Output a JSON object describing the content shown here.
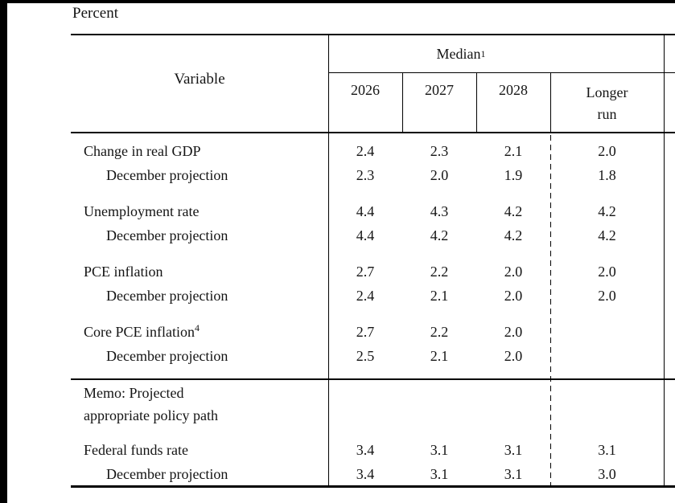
{
  "page": {
    "unit_label": "Percent"
  },
  "table": {
    "header": {
      "variable": "Variable",
      "median": "Median",
      "median_sup": "1",
      "years": [
        "2026",
        "2027",
        "2028"
      ],
      "longer_run_line1": "Longer",
      "longer_run_line2": "run"
    },
    "rows": [
      {
        "label": "Change in real GDP",
        "sup": "",
        "indent": false,
        "group_start": false,
        "values": [
          "2.4",
          "2.3",
          "2.1",
          "2.0"
        ]
      },
      {
        "label": "December projection",
        "sup": "",
        "indent": true,
        "group_start": false,
        "values": [
          "2.3",
          "2.0",
          "1.9",
          "1.8"
        ]
      },
      {
        "label": "Unemployment rate",
        "sup": "",
        "indent": false,
        "group_start": true,
        "values": [
          "4.4",
          "4.3",
          "4.2",
          "4.2"
        ]
      },
      {
        "label": "December projection",
        "sup": "",
        "indent": true,
        "group_start": false,
        "values": [
          "4.4",
          "4.2",
          "4.2",
          "4.2"
        ]
      },
      {
        "label": "PCE inflation",
        "sup": "",
        "indent": false,
        "group_start": true,
        "values": [
          "2.7",
          "2.2",
          "2.0",
          "2.0"
        ]
      },
      {
        "label": "December projection",
        "sup": "",
        "indent": true,
        "group_start": false,
        "values": [
          "2.4",
          "2.1",
          "2.0",
          "2.0"
        ]
      },
      {
        "label": "Core PCE inflation",
        "sup": "4",
        "indent": false,
        "group_start": true,
        "values": [
          "2.7",
          "2.2",
          "2.0",
          ""
        ]
      },
      {
        "label": "December projection",
        "sup": "",
        "indent": true,
        "group_start": false,
        "values": [
          "2.5",
          "2.1",
          "2.0",
          ""
        ]
      }
    ],
    "memo": {
      "line1": "Memo: Projected",
      "line2": "appropriate policy path"
    },
    "memo_rows": [
      {
        "label": "Federal funds rate",
        "sup": "",
        "indent": false,
        "group_start": true,
        "values": [
          "3.4",
          "3.1",
          "3.1",
          "3.1"
        ]
      },
      {
        "label": "December projection",
        "sup": "",
        "indent": true,
        "group_start": false,
        "values": [
          "3.4",
          "3.1",
          "3.1",
          "3.0"
        ]
      }
    ]
  }
}
